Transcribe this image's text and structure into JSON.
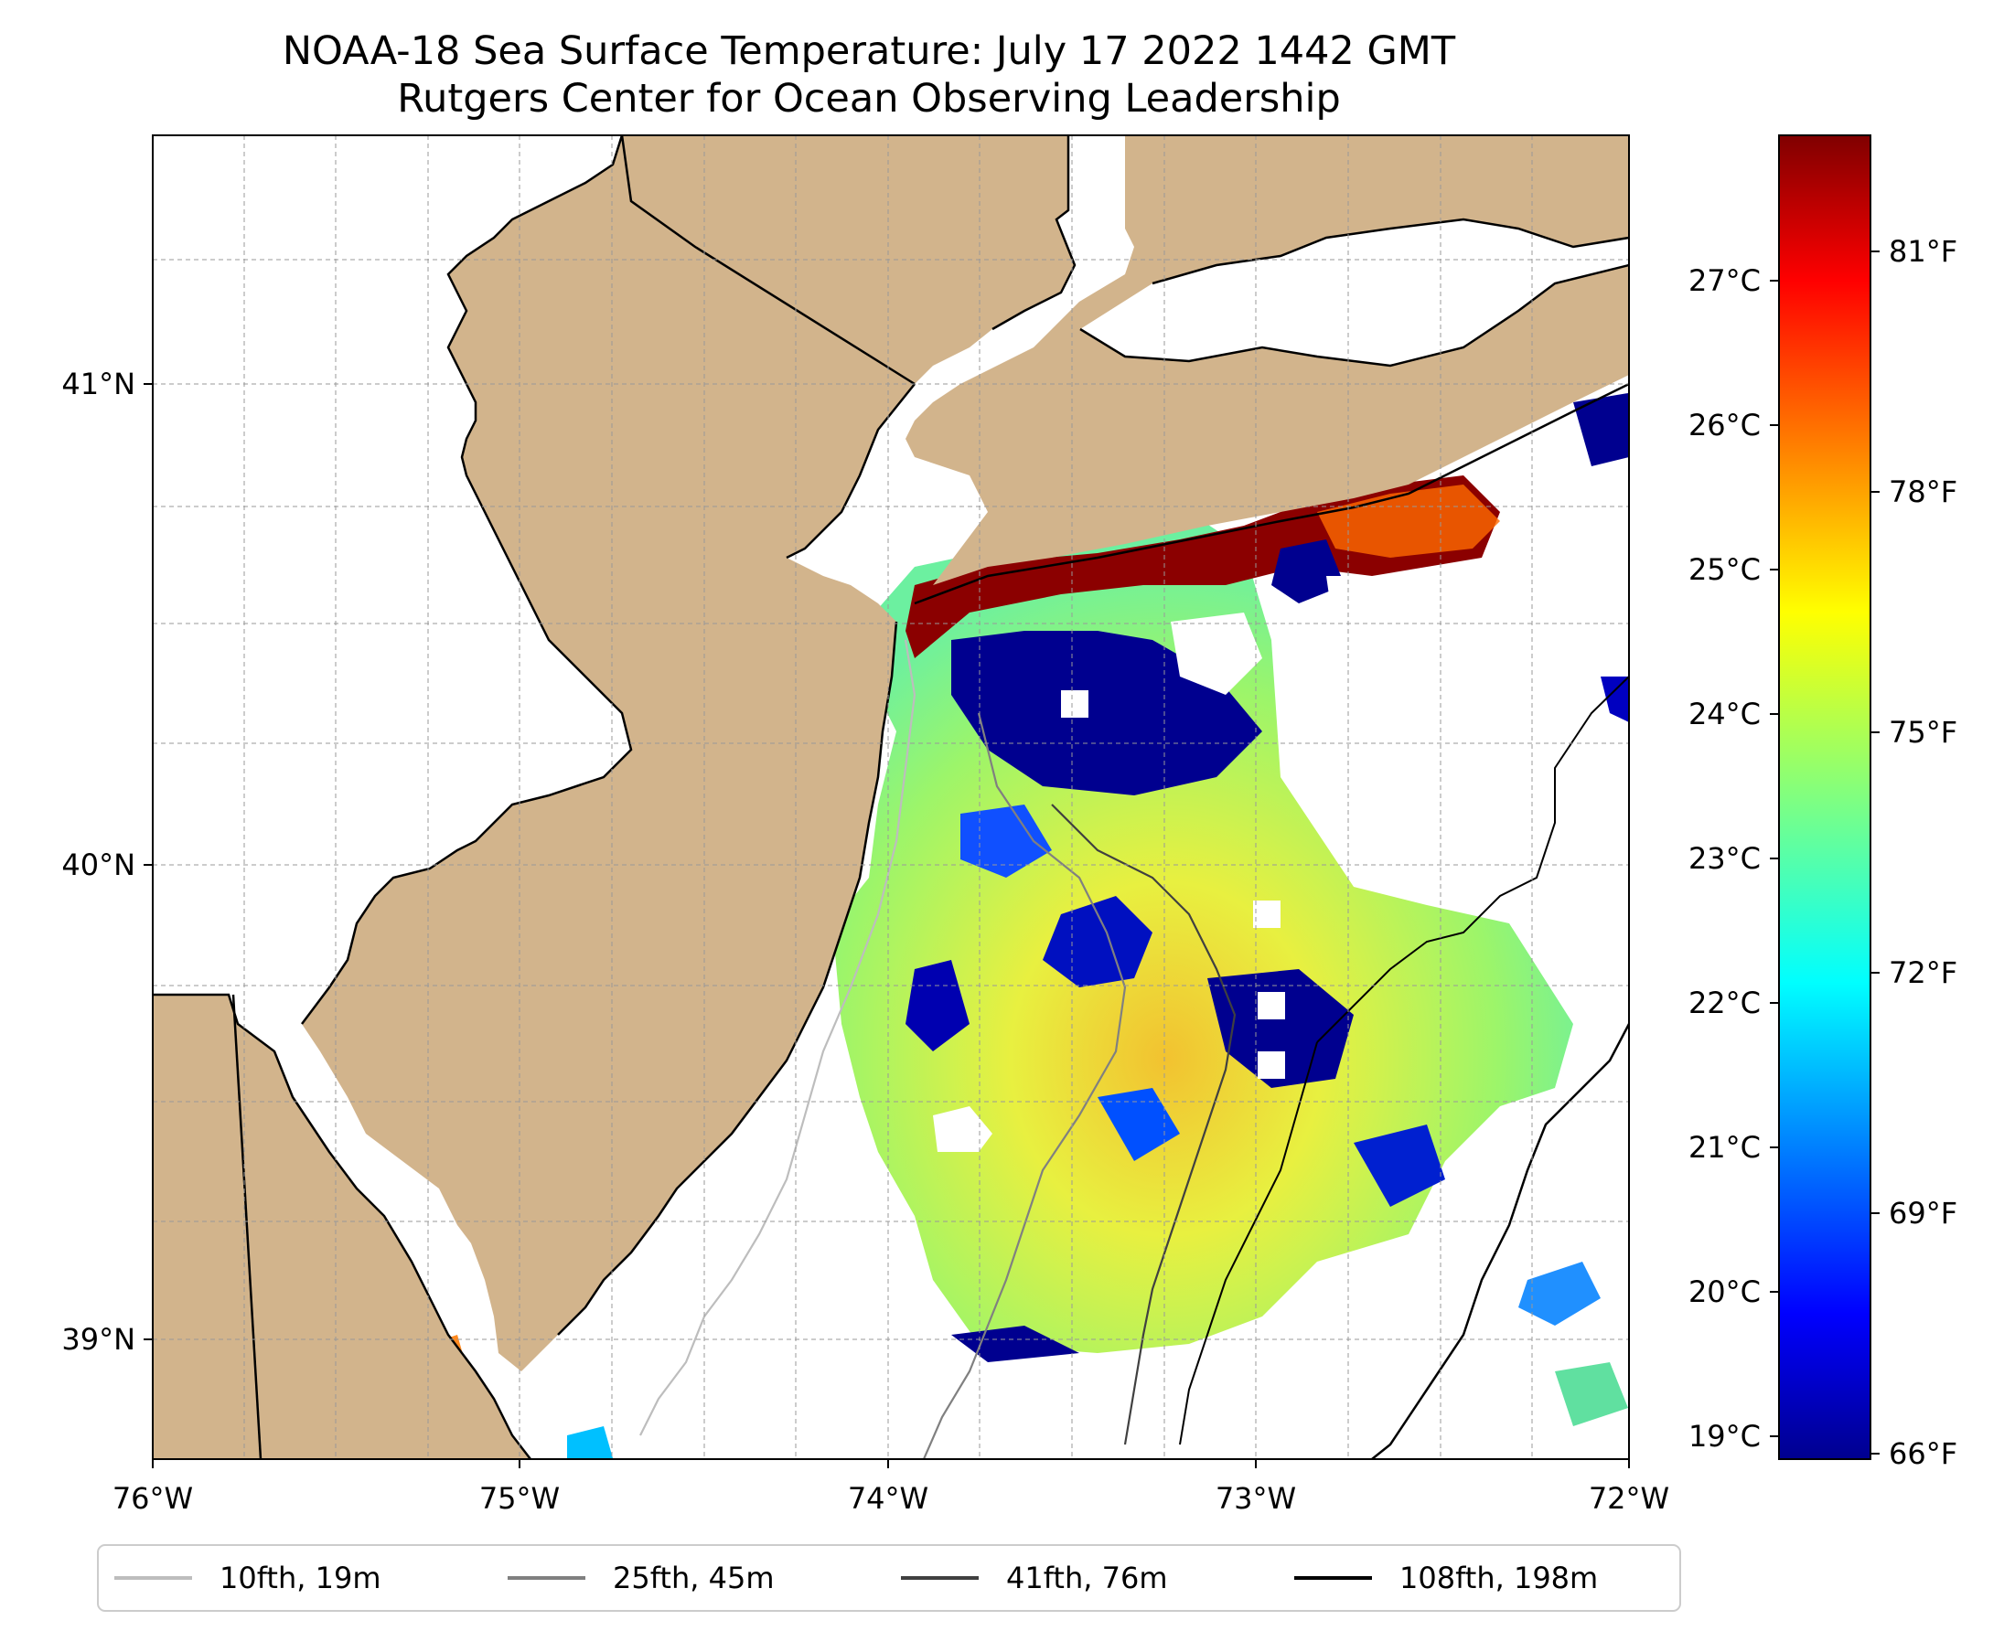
{
  "title": {
    "line1": "NOAA-18 Sea Surface Temperature: July 17 2022 1442 GMT",
    "line2": "Rutgers Center for Ocean Observing Leadership"
  },
  "map": {
    "longitude_ticks": [
      "76°W",
      "75°W",
      "74°W",
      "73°W",
      "72°W"
    ],
    "latitude_ticks": [
      "41°N",
      "40°N",
      "39°N"
    ],
    "land_color": "#d2b48c",
    "gridlines": true
  },
  "colorbar": {
    "colormap": "jet",
    "celsius_ticks": [
      "27°C",
      "26°C",
      "25°C",
      "24°C",
      "23°C",
      "22°C",
      "21°C",
      "20°C",
      "19°C"
    ],
    "fahrenheit_ticks": [
      "81°F",
      "78°F",
      "75°F",
      "72°F",
      "69°F",
      "66°F"
    ]
  },
  "legend": {
    "items": [
      {
        "label": "10fth, 19m",
        "color": "#bdbdbd"
      },
      {
        "label": "25fth, 45m",
        "color": "#808080"
      },
      {
        "label": "41fth, 76m",
        "color": "#404040"
      },
      {
        "label": "108fth, 198m",
        "color": "#000000"
      }
    ]
  }
}
